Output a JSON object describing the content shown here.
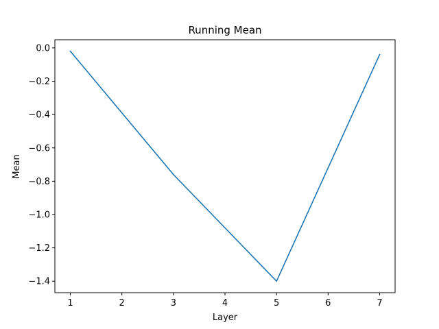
{
  "chart_data": {
    "type": "line",
    "title": "Running Mean",
    "xlabel": "Layer",
    "ylabel": "Mean",
    "x": [
      1,
      3,
      5,
      7
    ],
    "series": [
      {
        "values": [
          -0.02,
          -0.76,
          -1.4,
          -0.04
        ],
        "color": "#1f77b4"
      }
    ],
    "xlim": [
      0.7,
      7.3
    ],
    "ylim": [
      -1.469,
      0.049
    ],
    "xticks": [
      1,
      2,
      3,
      4,
      5,
      6,
      7
    ],
    "yticks": [
      0.0,
      -0.2,
      -0.4,
      -0.6,
      -0.8,
      -1.0,
      -1.2,
      -1.4
    ],
    "ytick_labels": [
      "0.0",
      "−0.2",
      "−0.4",
      "−0.6",
      "−0.8",
      "−1.0",
      "−1.2",
      "−1.4"
    ],
    "grid": false,
    "legend": false
  }
}
